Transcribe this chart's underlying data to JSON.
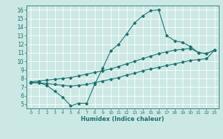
{
  "xlabel": "Humidex (Indice chaleur)",
  "bg_color": "#cce8e4",
  "grid_color": "#ffffff",
  "line_color": "#1a7070",
  "xlim": [
    -0.5,
    23.5
  ],
  "ylim": [
    4.5,
    16.5
  ],
  "xticks": [
    0,
    1,
    2,
    3,
    4,
    5,
    6,
    7,
    8,
    9,
    10,
    11,
    12,
    13,
    14,
    15,
    16,
    17,
    18,
    19,
    20,
    21,
    22,
    23
  ],
  "yticks": [
    5,
    6,
    7,
    8,
    9,
    10,
    11,
    12,
    13,
    14,
    15,
    16
  ],
  "line1_x": [
    0,
    1,
    2,
    3,
    4,
    5,
    6,
    7,
    8,
    9,
    10,
    11,
    12,
    13,
    14,
    15,
    16,
    17,
    18,
    19,
    20,
    21,
    22,
    23
  ],
  "line1_y": [
    7.5,
    7.5,
    7.2,
    6.5,
    5.8,
    4.8,
    5.1,
    5.1,
    7.3,
    9.2,
    11.2,
    12.0,
    13.2,
    14.5,
    15.3,
    15.9,
    16.0,
    13.0,
    12.4,
    12.2,
    11.7,
    11.0,
    10.9,
    11.3
  ],
  "line2_x": [
    0,
    1,
    2,
    3,
    4,
    5,
    6,
    7,
    8,
    9,
    10,
    11,
    12,
    13,
    14,
    15,
    16,
    17,
    18,
    19,
    20,
    21,
    22,
    23
  ],
  "line2_y": [
    7.6,
    7.7,
    7.8,
    7.9,
    8.0,
    8.1,
    8.3,
    8.5,
    8.7,
    8.9,
    9.1,
    9.4,
    9.7,
    10.0,
    10.3,
    10.6,
    10.9,
    11.1,
    11.3,
    11.4,
    11.5,
    11.0,
    10.9,
    11.3
  ],
  "line3_x": [
    0,
    1,
    2,
    3,
    4,
    5,
    6,
    7,
    8,
    9,
    10,
    11,
    12,
    13,
    14,
    15,
    16,
    17,
    18,
    19,
    20,
    21,
    22,
    23
  ],
  "line3_y": [
    7.5,
    7.5,
    7.4,
    7.3,
    7.2,
    7.1,
    7.2,
    7.3,
    7.5,
    7.7,
    7.9,
    8.1,
    8.4,
    8.6,
    8.9,
    9.1,
    9.3,
    9.5,
    9.7,
    9.9,
    10.1,
    10.2,
    10.3,
    11.3
  ],
  "xtick_fontsize": 4.5,
  "ytick_fontsize": 5.5,
  "xlabel_fontsize": 6.0
}
